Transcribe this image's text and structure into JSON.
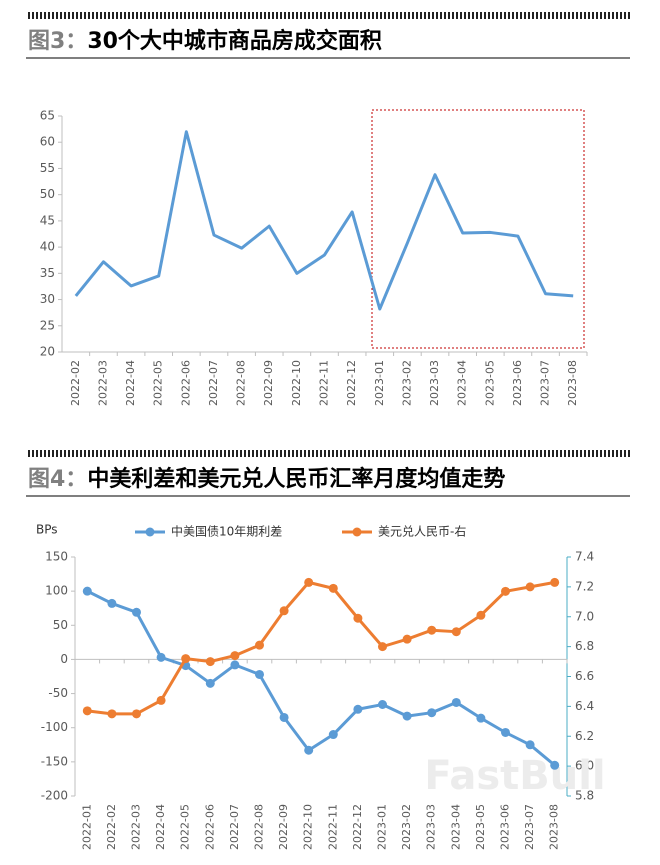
{
  "chart_data": [
    {
      "type": "line",
      "figure_label": "图3：",
      "title": "30个大中城市商品房成交面积",
      "categories": [
        "2022-02",
        "2022-03",
        "2022-04",
        "2022-05",
        "2022-06",
        "2022-07",
        "2022-08",
        "2022-09",
        "2022-10",
        "2022-11",
        "2022-12",
        "2023-01",
        "2023-02",
        "2023-03",
        "2023-04",
        "2023-05",
        "2023-06",
        "2023-07",
        "2023-08"
      ],
      "values": [
        30.7,
        37.2,
        32.6,
        34.5,
        62,
        42.3,
        39.8,
        44,
        35,
        38.5,
        46.7,
        28.2,
        40.8,
        53.8,
        42.7,
        42.8,
        42.1,
        31.1,
        30.7
      ],
      "color": "#5b9bd5",
      "ylim": [
        20,
        65
      ],
      "yticks": [
        20,
        25,
        30,
        35,
        40,
        45,
        50,
        55,
        60,
        65
      ],
      "grid": false
    },
    {
      "type": "line",
      "figure_label": "图4：",
      "title": "中美利差和美元兑人民币汇率月度均值走势",
      "y_label": "BPs",
      "legend": "top",
      "grid": false,
      "watermark": "FastBull",
      "categories": [
        "2022-01",
        "2022-02",
        "2022-03",
        "2022-04",
        "2022-05",
        "2022-06",
        "2022-07",
        "2022-08",
        "2022-09",
        "2022-10",
        "2022-11",
        "2022-12",
        "2023-01",
        "2023-02",
        "2023-03",
        "2023-04",
        "2023-05",
        "2023-06",
        "2023-07",
        "2023-08"
      ],
      "series": [
        {
          "name": "中美国债10年期利差",
          "color": "#5b9bd5",
          "axis": "y",
          "values": [
            100,
            82,
            69,
            3,
            -9,
            -35,
            -8,
            -22,
            -85,
            -133,
            -110,
            -73,
            -66,
            -83,
            -78,
            -63,
            -86,
            -107,
            -125,
            -155
          ]
        },
        {
          "name": "美元兑人民币-右",
          "color": "#ed7d31",
          "axis": "y2",
          "values": [
            6.37,
            6.35,
            6.35,
            6.44,
            6.72,
            6.7,
            6.74,
            6.81,
            7.04,
            7.23,
            7.19,
            6.99,
            6.8,
            6.85,
            6.91,
            6.9,
            7.01,
            7.17,
            7.2,
            7.23
          ]
        }
      ],
      "ylim": [
        -200,
        150
      ],
      "yticks": [
        -200,
        -150,
        -100,
        -50,
        0,
        50,
        100,
        150
      ],
      "y2lim": [
        5.8,
        7.4
      ],
      "y2ticks": [
        5.8,
        {
          "value": 6,
          "label": "6.0"
        },
        6.2,
        6.4,
        6.6,
        6.8,
        {
          "value": 7,
          "label": "7.0"
        },
        7.2,
        7.4
      ]
    }
  ]
}
